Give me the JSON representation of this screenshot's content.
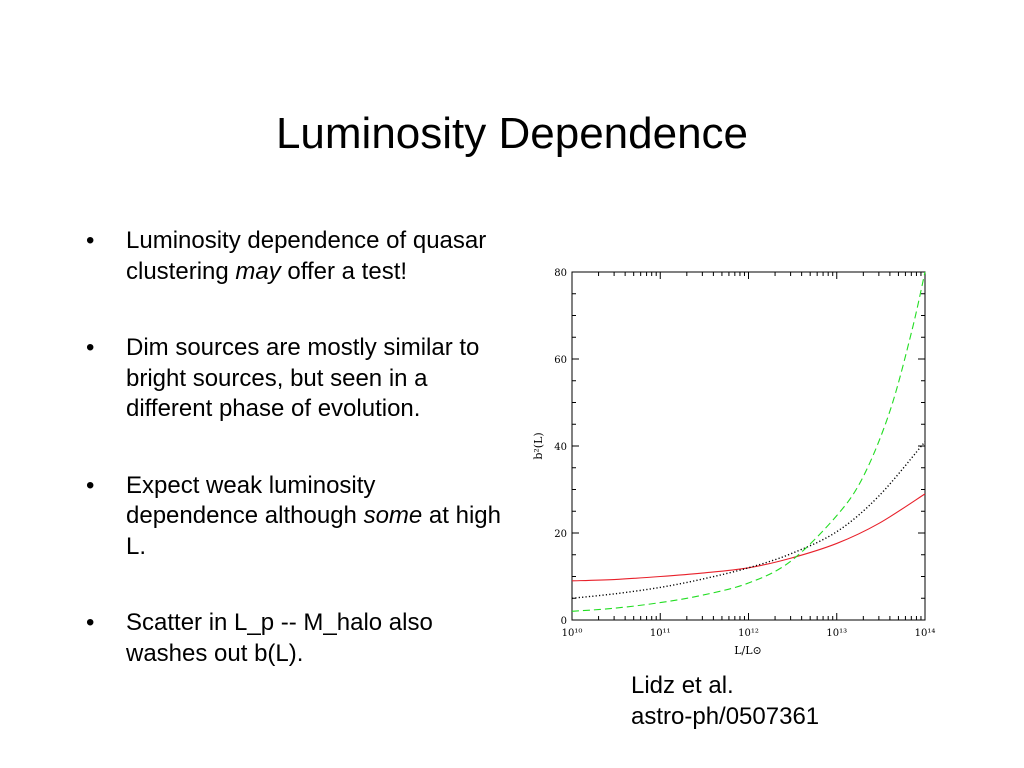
{
  "slide": {
    "title": "Luminosity Dependence"
  },
  "bullets": [
    {
      "parts": [
        {
          "text": "Luminosity dependence of quasar clustering ",
          "italic": false
        },
        {
          "text": "may",
          "italic": true
        },
        {
          "text": " offer a test!",
          "italic": false
        }
      ]
    },
    {
      "parts": [
        {
          "text": "Dim sources are mostly similar to bright sources, but seen in a different phase of evolution.",
          "italic": false
        }
      ]
    },
    {
      "parts": [
        {
          "text": "Expect weak luminosity dependence although ",
          "italic": false
        },
        {
          "text": "some",
          "italic": true
        },
        {
          "text": " at high L.",
          "italic": false
        }
      ]
    },
    {
      "parts": [
        {
          "text": "Scatter in L_p -- M_halo also washes out b(L).",
          "italic": false
        }
      ]
    }
  ],
  "bullet_symbol": "•",
  "citation": {
    "line1": "Lidz et al.",
    "line2": "astro-ph/0507361"
  },
  "chart_data": {
    "type": "line",
    "xlabel": "L/L⊙",
    "ylabel": "b²(L)",
    "xscale": "log",
    "xlim": [
      10000000000.0,
      100000000000000.0
    ],
    "ylim": [
      0,
      80
    ],
    "x_ticks": [
      {
        "value": 10000000000.0,
        "label": "10¹⁰"
      },
      {
        "value": 100000000000.0,
        "label": "10¹¹"
      },
      {
        "value": 1000000000000.0,
        "label": "10¹²"
      },
      {
        "value": 10000000000000.0,
        "label": "10¹³"
      },
      {
        "value": 100000000000000.0,
        "label": "10¹⁴"
      }
    ],
    "y_ticks": [
      0,
      20,
      40,
      60,
      80
    ],
    "grid": false,
    "series": [
      {
        "style": "solid",
        "color": "#e8202a",
        "x": [
          10000000000.0,
          30000000000.0,
          100000000000.0,
          300000000000.0,
          1000000000000.0,
          3000000000000.0,
          10000000000000.0,
          30000000000000.0,
          100000000000000.0
        ],
        "y": [
          9,
          9.3,
          10,
          10.8,
          12,
          14.2,
          17.6,
          22.2,
          29
        ]
      },
      {
        "style": "dotted",
        "color": "#000000",
        "x": [
          10000000000.0,
          30000000000.0,
          100000000000.0,
          300000000000.0,
          1000000000000.0,
          3000000000000.0,
          10000000000000.0,
          30000000000000.0,
          100000000000000.0
        ],
        "y": [
          5,
          6,
          7.5,
          9.4,
          12,
          15.2,
          20.3,
          28.5,
          41
        ]
      },
      {
        "style": "dashed",
        "color": "#22dd22",
        "x": [
          10000000000.0,
          30000000000.0,
          100000000000.0,
          300000000000.0,
          1000000000000.0,
          3000000000000.0,
          10000000000000.0,
          20000000000000.0,
          40000000000000.0,
          70000000000000.0,
          100000000000000.0
        ],
        "y": [
          2,
          2.7,
          4,
          5.7,
          8.5,
          13.5,
          24,
          33,
          48,
          66,
          80
        ]
      }
    ]
  }
}
